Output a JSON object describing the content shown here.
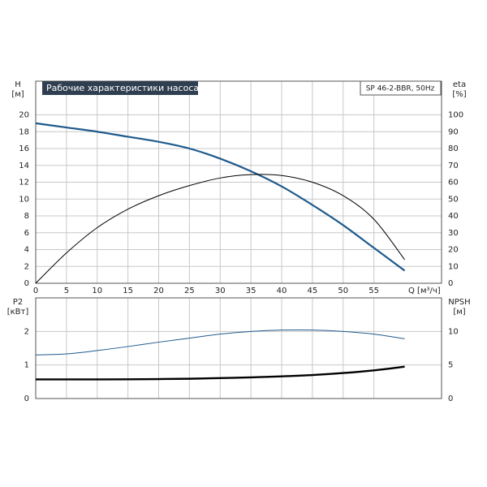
{
  "chart_data": [
    {
      "type": "line",
      "title": "Рабочие характеристики насоса",
      "subtitle": "SP 46-2-BBR, 50Hz",
      "ylabel": "H",
      "yunit": "[м]",
      "y2label": "eta",
      "y2unit": "[%]",
      "xlabel": "Q [м³/ч]",
      "x": [
        0,
        5,
        10,
        15,
        20,
        25,
        30,
        35,
        40,
        45,
        50,
        55,
        60
      ],
      "xlim": [
        0,
        66
      ],
      "xticks": [
        0,
        5,
        10,
        15,
        20,
        25,
        30,
        35,
        40,
        45,
        50,
        55
      ],
      "ylim": [
        0,
        24
      ],
      "yticks": [
        0,
        2,
        4,
        6,
        8,
        10,
        12,
        14,
        16,
        18,
        20
      ],
      "y2lim": [
        0,
        120
      ],
      "y2ticks": [
        0,
        10,
        20,
        30,
        40,
        50,
        60,
        70,
        80,
        90,
        100
      ],
      "grid": true,
      "series": [
        {
          "name": "H",
          "color": "#1f5a8c",
          "values": [
            19,
            18.5,
            18,
            17.4,
            16.8,
            16,
            14.8,
            13.3,
            11.5,
            9.3,
            6.9,
            4.2,
            1.5
          ]
        },
        {
          "name": "eta",
          "color": "#000000",
          "axis": "y2",
          "values": [
            0,
            18,
            33,
            44,
            52,
            58,
            62.5,
            64.5,
            64,
            60,
            52,
            38,
            14
          ]
        }
      ]
    },
    {
      "type": "line",
      "ylabel": "P2",
      "yunit": "[кВт]",
      "y2label": "NPSH",
      "y2unit": "[м]",
      "x": [
        0,
        5,
        10,
        15,
        20,
        25,
        30,
        35,
        40,
        45,
        50,
        55,
        60
      ],
      "xlim": [
        0,
        66
      ],
      "ylim": [
        0,
        3
      ],
      "yticks": [
        0,
        1,
        2
      ],
      "y2lim": [
        0,
        15
      ],
      "y2ticks": [
        0,
        5,
        10
      ],
      "grid": true,
      "series": [
        {
          "name": "P2",
          "color": "#1f5a8c",
          "values": [
            1.3,
            1.33,
            1.43,
            1.55,
            1.68,
            1.8,
            1.92,
            2.0,
            2.04,
            2.04,
            2.0,
            1.92,
            1.78
          ]
        },
        {
          "name": "NPSH",
          "color": "#000000",
          "axis": "y2",
          "values": [
            2.85,
            2.85,
            2.85,
            2.87,
            2.9,
            2.95,
            3.05,
            3.15,
            3.3,
            3.5,
            3.8,
            4.2,
            4.75
          ]
        }
      ]
    }
  ]
}
